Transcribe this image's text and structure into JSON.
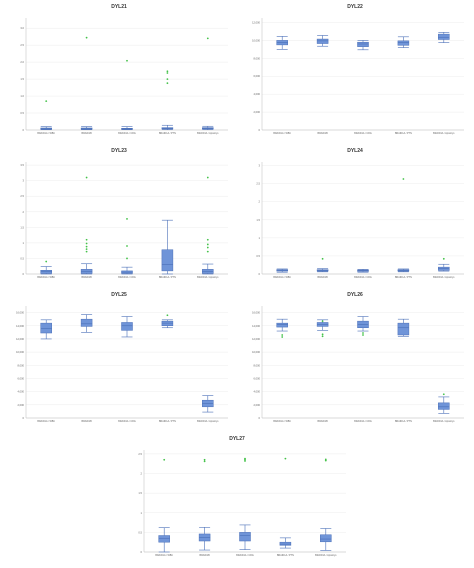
{
  "colors": {
    "box_fill": "#6f94d8",
    "box_stroke": "#4a6fb8",
    "outlier": "#44c24a",
    "grid": "#ececec",
    "axis": "#bdbdbd"
  },
  "chart_data": [
    {
      "type": "box",
      "title": "DYL21",
      "categories": [
        "BRAID1A / WBC",
        "BRAID1B",
        "BRAID1A / CRG",
        "BRAID1A / PTN",
        "BRAID1A / Apostrys"
      ],
      "yticks": [
        "0",
        "0.5",
        "1.0",
        "1.5",
        "2.0",
        "2.5",
        "3.0"
      ],
      "ylim": [
        0,
        3.3
      ],
      "boxes": [
        {
          "min": 0.01,
          "q1": 0.02,
          "median": 0.04,
          "q3": 0.06,
          "max": 0.1,
          "outliers": [
            0.85
          ]
        },
        {
          "min": 0.01,
          "q1": 0.02,
          "median": 0.04,
          "q3": 0.06,
          "max": 0.1,
          "outliers": [
            2.72
          ]
        },
        {
          "min": 0.01,
          "q1": 0.02,
          "median": 0.04,
          "q3": 0.05,
          "max": 0.1,
          "outliers": [
            2.04
          ]
        },
        {
          "min": 0.01,
          "q1": 0.03,
          "median": 0.05,
          "q3": 0.07,
          "max": 0.14,
          "outliers": [
            1.38,
            1.5,
            1.68,
            1.73
          ]
        },
        {
          "min": 0.01,
          "q1": 0.03,
          "median": 0.05,
          "q3": 0.07,
          "max": 0.11,
          "outliers": [
            2.7
          ]
        }
      ]
    },
    {
      "type": "box",
      "title": "DYL22",
      "categories": [
        "BRAID1A / WBC",
        "BRAID1B",
        "BRAID1A / CRG",
        "BRAID1A / PTN",
        "BRAID1A / Apostrys"
      ],
      "yticks": [
        "0",
        "2,000",
        "4,000",
        "6,000",
        "8,000",
        "10,000",
        "12,000"
      ],
      "ylim": [
        0,
        12500
      ],
      "boxes": [
        {
          "min": 9000,
          "q1": 9500,
          "median": 9750,
          "q3": 10000,
          "max": 10450,
          "outliers": []
        },
        {
          "min": 9350,
          "q1": 9650,
          "median": 9950,
          "q3": 10150,
          "max": 10550,
          "outliers": []
        },
        {
          "min": 8950,
          "q1": 9300,
          "median": 9600,
          "q3": 9800,
          "max": 10000,
          "outliers": []
        },
        {
          "min": 9200,
          "q1": 9450,
          "median": 9750,
          "q3": 9950,
          "max": 10400,
          "outliers": []
        },
        {
          "min": 9750,
          "q1": 10100,
          "median": 10350,
          "q3": 10700,
          "max": 10900,
          "outliers": []
        }
      ]
    },
    {
      "type": "box",
      "title": "DYL23",
      "categories": [
        "BRAID1A / WBC",
        "BRAID1B",
        "BRAID1A / CRG",
        "BRAID1A / PTN",
        "BRAID1A / Apostrys"
      ],
      "yticks": [
        "0",
        "0.5",
        "1",
        "1.5",
        "2",
        "2.5",
        "3",
        "3.5"
      ],
      "ylim": [
        0,
        3.6
      ],
      "boxes": [
        {
          "min": 0,
          "q1": 0.02,
          "median": 0.08,
          "q3": 0.12,
          "max": 0.24,
          "outliers": [
            0.4
          ]
        },
        {
          "min": 0,
          "q1": 0.02,
          "median": 0.08,
          "q3": 0.15,
          "max": 0.33,
          "outliers": [
            0.72,
            0.8,
            0.88,
            0.98,
            1.1,
            3.1
          ]
        },
        {
          "min": 0,
          "q1": 0.02,
          "median": 0.06,
          "q3": 0.1,
          "max": 0.22,
          "outliers": [
            0.5,
            0.9,
            1.77
          ]
        },
        {
          "min": 0,
          "q1": 0.1,
          "median": 0.3,
          "q3": 0.78,
          "max": 1.73,
          "outliers": []
        },
        {
          "min": 0,
          "q1": 0.02,
          "median": 0.08,
          "q3": 0.15,
          "max": 0.32,
          "outliers": [
            0.72,
            0.85,
            0.95,
            1.1,
            3.1
          ]
        }
      ]
    },
    {
      "type": "box",
      "title": "DYL24",
      "categories": [
        "BRAID1A / WBC",
        "BRAID1B",
        "BRAID1A / CRG",
        "BRAID1A / PTN",
        "BRAID1A / Apostrys"
      ],
      "yticks": [
        "0",
        "0.5",
        "1",
        "1.5",
        "2",
        "2.5",
        "3"
      ],
      "ylim": [
        0,
        3.1
      ],
      "boxes": [
        {
          "min": 0.05,
          "q1": 0.08,
          "median": 0.1,
          "q3": 0.12,
          "max": 0.14,
          "outliers": []
        },
        {
          "min": 0.06,
          "q1": 0.08,
          "median": 0.1,
          "q3": 0.12,
          "max": 0.15,
          "outliers": [
            0.42
          ]
        },
        {
          "min": 0.05,
          "q1": 0.07,
          "median": 0.09,
          "q3": 0.11,
          "max": 0.13,
          "outliers": []
        },
        {
          "min": 0.06,
          "q1": 0.08,
          "median": 0.1,
          "q3": 0.12,
          "max": 0.14,
          "outliers": [
            2.63
          ]
        },
        {
          "min": 0.08,
          "q1": 0.1,
          "median": 0.15,
          "q3": 0.19,
          "max": 0.27,
          "outliers": [
            0.42
          ]
        }
      ]
    },
    {
      "type": "box",
      "title": "DYL25",
      "categories": [
        "BRAID1A / WBC",
        "BRAID1B",
        "BRAID1A / CRG",
        "BRAID1A / PTN",
        "BRAID1A / Apostrys"
      ],
      "yticks": [
        "0",
        "2,000",
        "4,000",
        "6,000",
        "8,000",
        "10,000",
        "12,000",
        "14,000",
        "16,000"
      ],
      "ylim": [
        0,
        17000
      ],
      "boxes": [
        {
          "min": 12000,
          "q1": 12900,
          "median": 13600,
          "q3": 14400,
          "max": 14900,
          "outliers": []
        },
        {
          "min": 13000,
          "q1": 13900,
          "median": 14300,
          "q3": 15000,
          "max": 15700,
          "outliers": []
        },
        {
          "min": 12300,
          "q1": 13300,
          "median": 14000,
          "q3": 14500,
          "max": 15400,
          "outliers": []
        },
        {
          "min": 13700,
          "q1": 14000,
          "median": 14400,
          "q3": 14700,
          "max": 14900,
          "outliers": [
            15600
          ]
        },
        {
          "min": 900,
          "q1": 1700,
          "median": 2200,
          "q3": 2700,
          "max": 3400,
          "outliers": []
        }
      ]
    },
    {
      "type": "box",
      "title": "DYL26",
      "categories": [
        "BRAID1A / WBC",
        "BRAID1B",
        "BRAID1A / CRG",
        "BRAID1A / PTN",
        "BRAID1A / Apostrys"
      ],
      "yticks": [
        "0",
        "2,000",
        "4,000",
        "6,000",
        "8,000",
        "10,000",
        "12,000",
        "14,000",
        "16,000"
      ],
      "ylim": [
        0,
        17000
      ],
      "boxes": [
        {
          "min": 13200,
          "q1": 13800,
          "median": 14200,
          "q3": 14400,
          "max": 15000,
          "outliers": [
            12300,
            12600
          ]
        },
        {
          "min": 13300,
          "q1": 13900,
          "median": 14200,
          "q3": 14500,
          "max": 14900,
          "outliers": [
            12400,
            12700,
            14700
          ]
        },
        {
          "min": 13200,
          "q1": 13700,
          "median": 14200,
          "q3": 14700,
          "max": 15400,
          "outliers": [
            12600,
            12900
          ]
        },
        {
          "min": 12400,
          "q1": 12600,
          "median": 13700,
          "q3": 14400,
          "max": 15000,
          "outliers": []
        },
        {
          "min": 700,
          "q1": 1300,
          "median": 1700,
          "q3": 2300,
          "max": 3200,
          "outliers": [
            3600
          ]
        }
      ]
    },
    {
      "type": "box",
      "title": "DYL27",
      "categories": [
        "BRAID1A / WBC",
        "BRAID1B",
        "BRAID1A / CRG",
        "BRAID1A / PTN",
        "BRAID1A / Apostrys"
      ],
      "yticks": [
        "0",
        "0.5",
        "1",
        "1.5",
        "2",
        "2.5"
      ],
      "ylim": [
        0,
        2.6
      ],
      "boxes": [
        {
          "min": 0,
          "q1": 0.25,
          "median": 0.35,
          "q3": 0.42,
          "max": 0.62,
          "outliers": [
            2.35
          ]
        },
        {
          "min": 0.05,
          "q1": 0.28,
          "median": 0.37,
          "q3": 0.46,
          "max": 0.63,
          "outliers": [
            2.31,
            2.35
          ]
        },
        {
          "min": 0.06,
          "q1": 0.28,
          "median": 0.42,
          "q3": 0.5,
          "max": 0.69,
          "outliers": [
            2.32,
            2.35,
            2.38
          ]
        },
        {
          "min": 0.1,
          "q1": 0.17,
          "median": 0.2,
          "q3": 0.25,
          "max": 0.36,
          "outliers": [
            2.38
          ]
        },
        {
          "min": 0.04,
          "q1": 0.26,
          "median": 0.33,
          "q3": 0.44,
          "max": 0.6,
          "outliers": [
            2.33,
            2.36
          ]
        }
      ]
    }
  ]
}
